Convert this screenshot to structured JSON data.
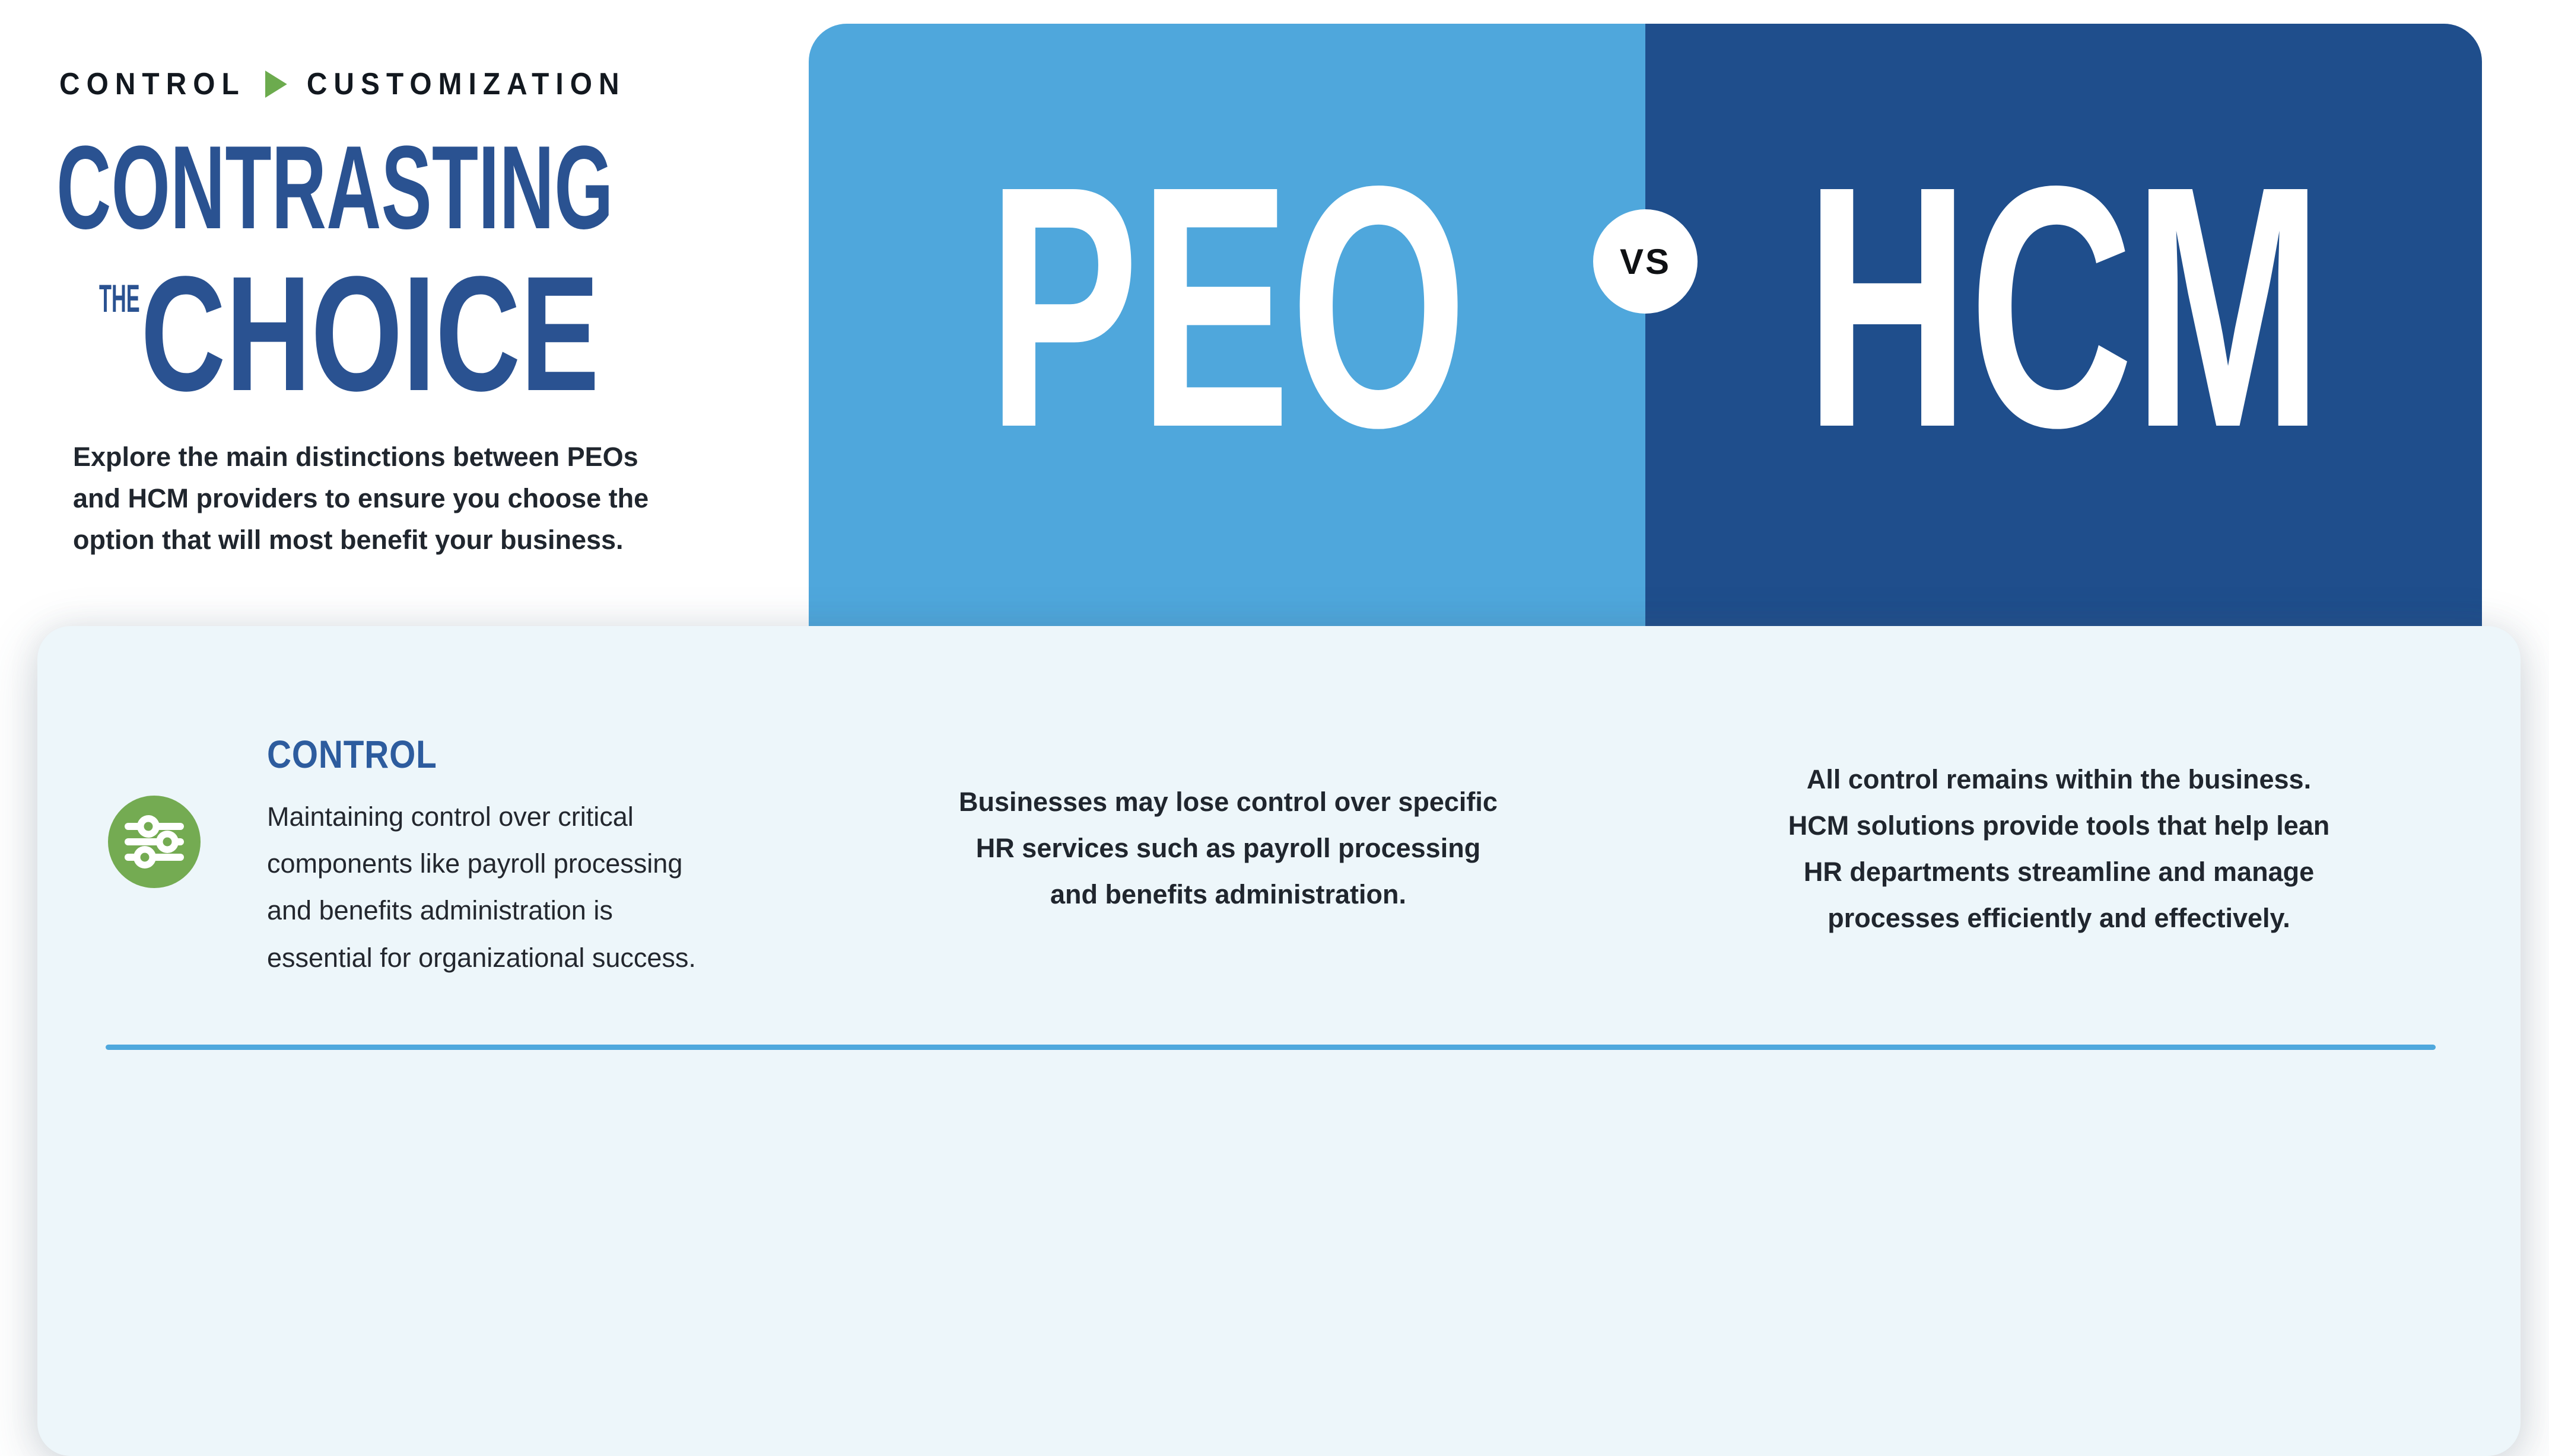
{
  "colors": {
    "peo_blue": "#4FA7DC",
    "hcm_blue": "#1F4E8C",
    "title_navy": "#2A5291",
    "heading_blue": "#2D5C9E",
    "accent_green": "#74AB52",
    "arrow_green": "#6CAB4E",
    "divider_blue": "#4FA8DD",
    "panel_bg": "#EDF6FA",
    "text_dark": "#20262E"
  },
  "header": {
    "eyebrow": {
      "left": "CONTROL",
      "right": "CUSTOMIZATION"
    },
    "title": {
      "line1": "CONTRASTING",
      "prefix": "THE",
      "line2": "CHOICE"
    },
    "intro_lines": [
      "Explore the main distinctions between PEOs",
      "and HCM providers to ensure you choose the",
      "option that will most benefit your business."
    ]
  },
  "banner": {
    "peo_label": "PEO",
    "hcm_label": "HCM",
    "vs_label": "VS"
  },
  "comparison": {
    "heading": "CONTROL",
    "icon": "sliders-icon",
    "description_lines": [
      "Maintaining control over critical",
      "components like payroll processing",
      "and benefits administration is",
      "essential for organizational success."
    ],
    "peo_lines": [
      "Businesses may lose control over specific",
      "HR services such as payroll processing",
      "and benefits administration."
    ],
    "hcm_lines": [
      "All control remains within the business.",
      "HCM solutions provide tools that help lean",
      "HR departments streamline and manage",
      "processes efficiently and effectively."
    ]
  }
}
